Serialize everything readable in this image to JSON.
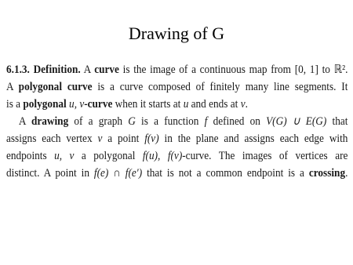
{
  "title": "Drawing of G",
  "definition": {
    "lines": [
      [
        "6.1.3. Definition.",
        " A ",
        "curve",
        " is the image of a continuous map from [0, 1] to ℝ²."
      ],
      [
        "A ",
        "polygonal curve",
        " is a curve composed of finitely many line segments. It"
      ],
      [
        "is a ",
        "polygonal",
        " ",
        "u, v",
        "-curve",
        " when it starts at ",
        "u",
        " and ends at ",
        "v",
        "."
      ],
      [
        "A ",
        "drawing",
        " of a graph ",
        "G",
        " is a function ",
        "f",
        " defined on ",
        "V(G) ∪ E(G)",
        " that"
      ],
      [
        "assigns each vertex ",
        "v",
        " a point ",
        "f(v)",
        " in the plane and assigns each edge with"
      ],
      [
        "endpoints ",
        "u, v",
        " a polygonal ",
        "f(u), f(v)",
        "-curve.  The images of vertices are"
      ],
      [
        "distinct. A point in ",
        "f(e) ∩ f(e′)",
        " that is not a common endpoint is a ",
        "crossing",
        "."
      ]
    ]
  }
}
